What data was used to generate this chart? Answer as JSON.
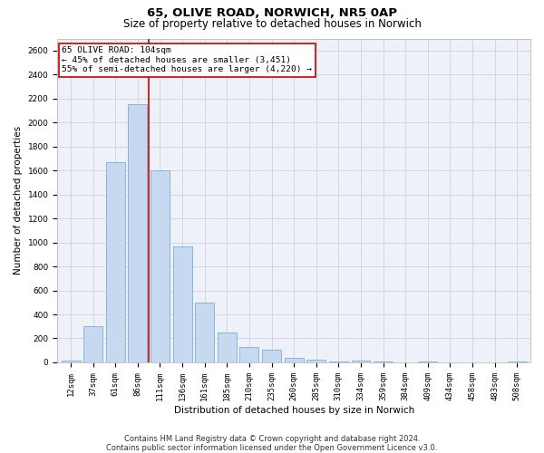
{
  "title_line1": "65, OLIVE ROAD, NORWICH, NR5 0AP",
  "title_line2": "Size of property relative to detached houses in Norwich",
  "xlabel": "Distribution of detached houses by size in Norwich",
  "ylabel": "Number of detached properties",
  "categories": [
    "12sqm",
    "37sqm",
    "61sqm",
    "86sqm",
    "111sqm",
    "136sqm",
    "161sqm",
    "185sqm",
    "210sqm",
    "235sqm",
    "260sqm",
    "285sqm",
    "310sqm",
    "334sqm",
    "359sqm",
    "384sqm",
    "409sqm",
    "434sqm",
    "458sqm",
    "483sqm",
    "508sqm"
  ],
  "values": [
    18,
    300,
    1670,
    2150,
    1600,
    970,
    500,
    248,
    125,
    103,
    35,
    22,
    8,
    15,
    5,
    2,
    8,
    2,
    0,
    0,
    10
  ],
  "bar_color": "#c7d9f0",
  "bar_edge_color": "#7aadd4",
  "bar_linewidth": 0.6,
  "grid_color": "#d0d8e8",
  "background_color": "#eef2f8",
  "annotation_box_text_line1": "65 OLIVE ROAD: 104sqm",
  "annotation_box_text_line2": "← 45% of detached houses are smaller (3,451)",
  "annotation_box_text_line3": "55% of semi-detached houses are larger (4,220) →",
  "annotation_box_edge_color": "#cc0000",
  "vline_x": 3.5,
  "vline_color": "#cc0000",
  "vline_linewidth": 1.2,
  "ylim": [
    0,
    2700
  ],
  "yticks": [
    0,
    200,
    400,
    600,
    800,
    1000,
    1200,
    1400,
    1600,
    1800,
    2000,
    2200,
    2400,
    2600
  ],
  "footnote_line1": "Contains HM Land Registry data © Crown copyright and database right 2024.",
  "footnote_line2": "Contains public sector information licensed under the Open Government Licence v3.0.",
  "title_fontsize": 9.5,
  "subtitle_fontsize": 8.5,
  "axis_label_fontsize": 7.5,
  "tick_fontsize": 6.5,
  "annotation_fontsize": 6.8,
  "footnote_fontsize": 6.0
}
